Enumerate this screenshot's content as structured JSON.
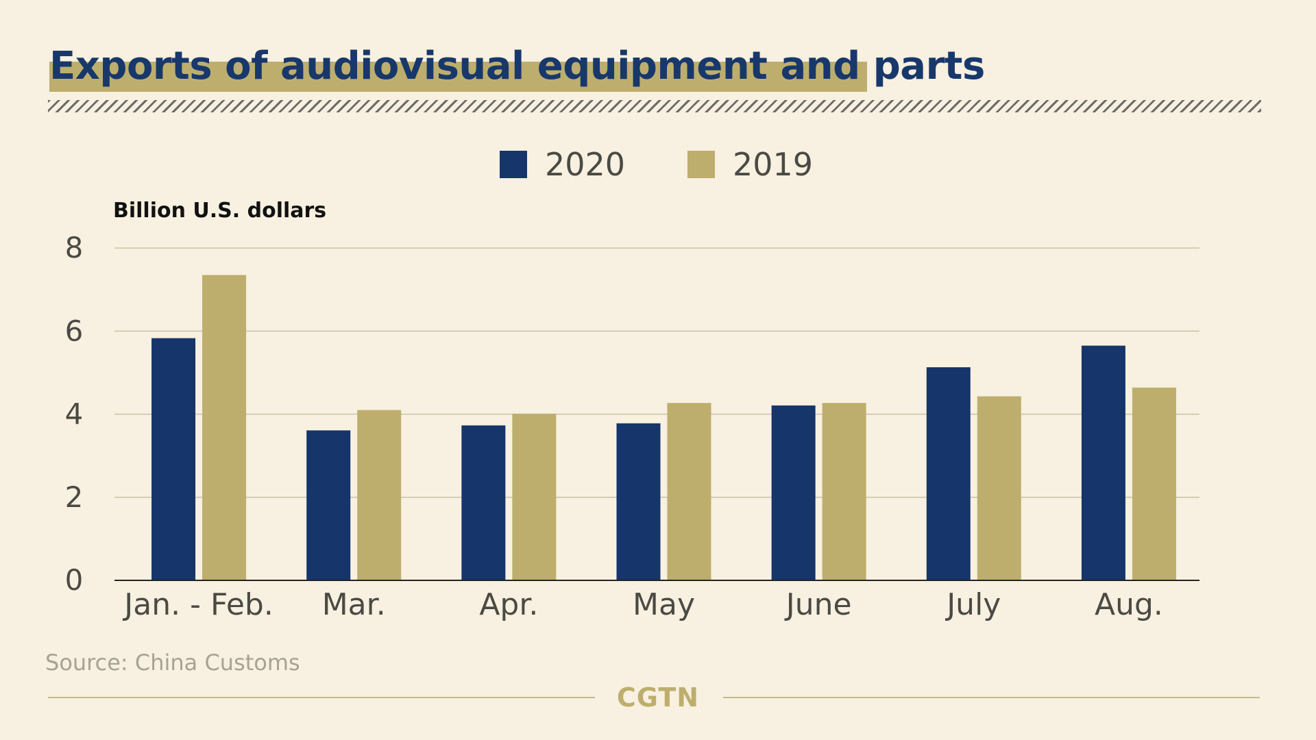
{
  "title": "Exports of audiovisual equipment and parts",
  "source": "Source: China Customs",
  "brand": "CGTN",
  "colors": {
    "series_2020": "#15356b",
    "series_2019": "#bdae6d",
    "background": "#f8f0e0"
  },
  "chart_data": {
    "type": "bar",
    "title": "Exports of audiovisual equipment and parts",
    "ylabel": "Billion U.S. dollars",
    "xlabel": "",
    "ylim": [
      0,
      8
    ],
    "yticks": [
      0,
      2,
      4,
      6,
      8
    ],
    "grid": true,
    "legend_position": "top-center",
    "categories": [
      "Jan. - Feb.",
      "Mar.",
      "Apr.",
      "May",
      "June",
      "July",
      "Aug."
    ],
    "series": [
      {
        "name": "2020",
        "values": [
          5.83,
          3.61,
          3.73,
          3.78,
          4.21,
          5.13,
          5.65
        ]
      },
      {
        "name": "2019",
        "values": [
          7.35,
          4.1,
          4.01,
          4.27,
          4.27,
          4.43,
          4.64
        ]
      }
    ]
  }
}
